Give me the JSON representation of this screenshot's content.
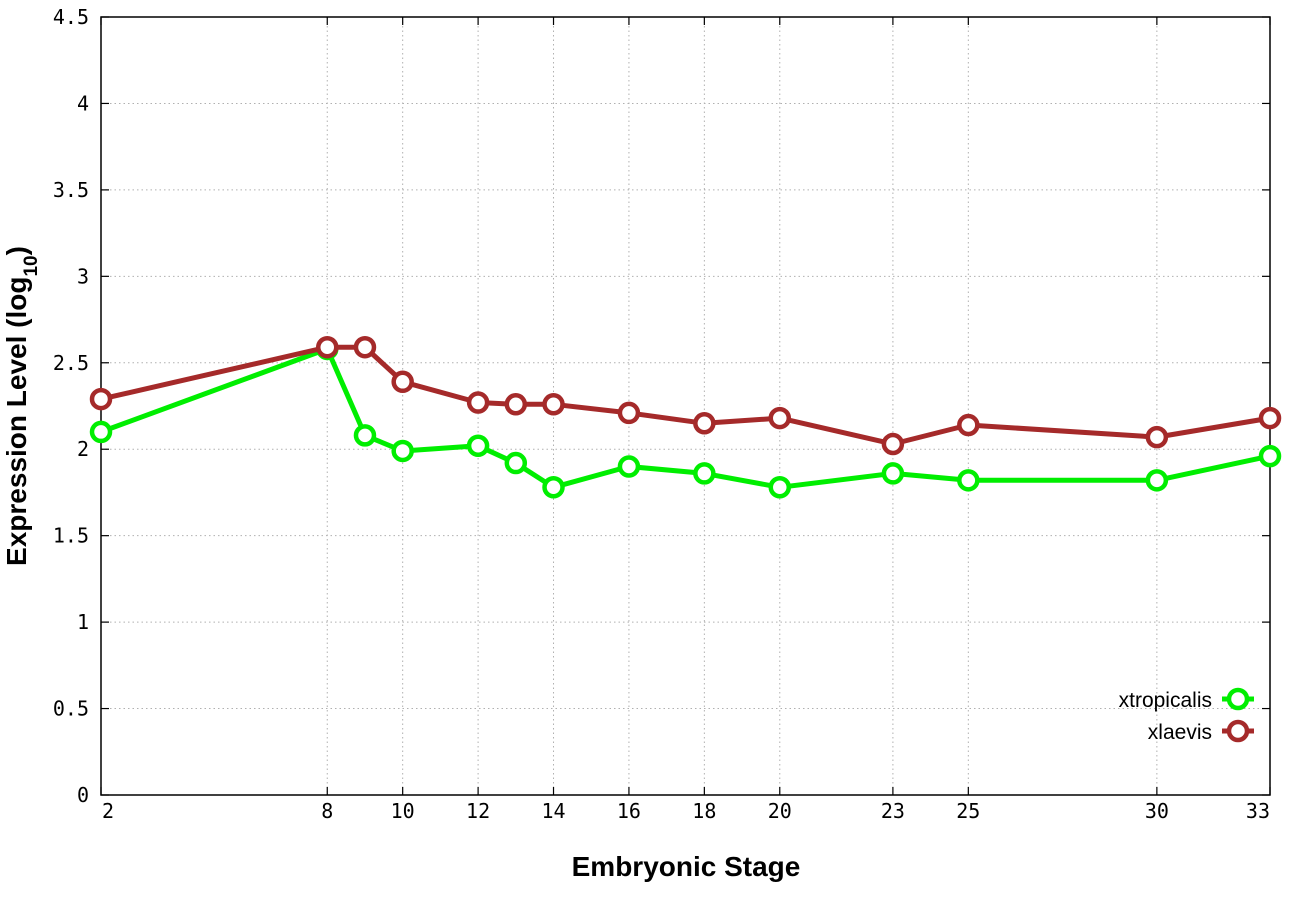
{
  "chart_data": {
    "type": "line",
    "xlabel": "Embryonic Stage",
    "ylabel": "Expression Level (log",
    "ylabel_sub": "10",
    "ylabel_suffix": ")",
    "x": [
      2,
      8,
      9,
      10,
      12,
      13,
      14,
      16,
      18,
      20,
      23,
      25,
      30,
      33
    ],
    "xticks": [
      "2",
      "8",
      "10",
      "12",
      "14",
      "16",
      "18",
      "20",
      "23",
      "25",
      "30",
      "33"
    ],
    "yticks": [
      "0",
      "0.5",
      "1",
      "1.5",
      "2",
      "2.5",
      "3",
      "3.5",
      "4",
      "4.5"
    ],
    "xlim": [
      2,
      33
    ],
    "ylim": [
      0,
      4.5
    ],
    "grid": true,
    "legend_position": "bottom-right",
    "series": [
      {
        "name": "xtropicalis",
        "color": "#00ee00",
        "values": [
          2.1,
          2.58,
          2.08,
          1.99,
          2.02,
          1.92,
          1.78,
          1.9,
          1.86,
          1.78,
          1.86,
          1.82,
          1.82,
          1.96
        ]
      },
      {
        "name": "xlaevis",
        "color": "#a52a2a",
        "values": [
          2.29,
          2.59,
          2.59,
          2.39,
          2.27,
          2.26,
          2.26,
          2.21,
          2.15,
          2.18,
          2.03,
          2.14,
          2.07,
          2.18
        ]
      }
    ]
  }
}
